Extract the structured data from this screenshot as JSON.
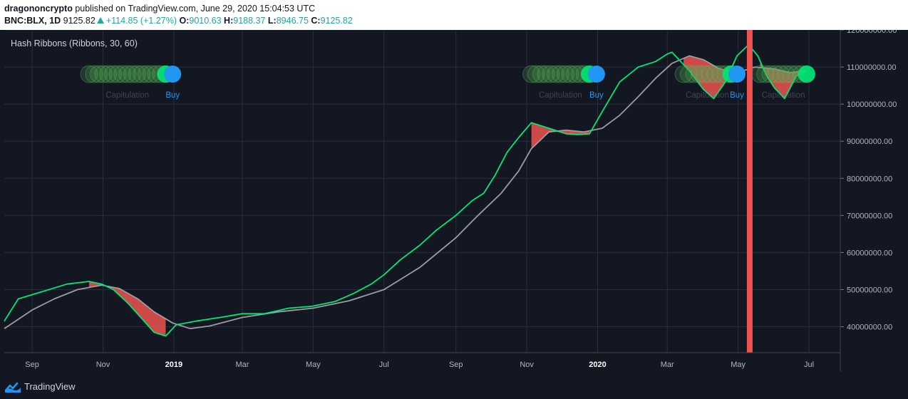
{
  "header": {
    "author": "dragononcrypto",
    "published_text": " published on TradingView.com, June 29, 2020 15:04:53 UTC",
    "symbol": "BNC:BLX, 1D",
    "last": "9125.82",
    "change": "+114.85 (+1.27%)",
    "o_label": "O:",
    "o_value": "9010.63",
    "h_label": "H:",
    "h_value": "9188.37",
    "l_label": "L:",
    "l_value": "8946.75",
    "c_label": "C:",
    "c_value": "9125.82"
  },
  "footer": {
    "brand": "TradingView"
  },
  "colors": {
    "background": "#131722",
    "grid": "#2a2e39",
    "fast_ma": "#00e676",
    "slow_ma": "#9e9aa4",
    "capitulation_fill": "#ef5350",
    "buy": "#2196f3",
    "vertical_marker": "#ef5350"
  },
  "chart_data": {
    "type": "line",
    "title": "Hash Ribbons (Ribbons, 30, 60)",
    "x_tick_labels": [
      "Sep",
      "Nov",
      "2019",
      "Mar",
      "May",
      "Jul",
      "Sep",
      "Nov",
      "2020",
      "Mar",
      "May",
      "Jul"
    ],
    "x_range": [
      "2018-08-08",
      "2020-07-28"
    ],
    "ylim": [
      33000000,
      120000000
    ],
    "y_tick_labels": [
      "120000000.00",
      "110000000.00",
      "100000000.00",
      "90000000.00",
      "80000000.00",
      "70000000.00",
      "60000000.00",
      "50000000.00",
      "40000000.00"
    ],
    "y_ticks": [
      120000000,
      110000000,
      100000000,
      90000000,
      80000000,
      70000000,
      60000000,
      50000000,
      40000000
    ],
    "grid": true,
    "series": [
      {
        "key": "fast",
        "x": [
          "2018-08-08",
          "2018-08-20",
          "2018-09-10",
          "2018-10-01",
          "2018-10-20",
          "2018-10-31",
          "2018-11-10",
          "2018-11-22",
          "2018-12-05",
          "2018-12-15",
          "2018-12-25",
          "2019-01-03",
          "2019-01-20",
          "2019-02-10",
          "2019-03-01",
          "2019-03-20",
          "2019-04-10",
          "2019-04-30",
          "2019-05-20",
          "2019-06-05",
          "2019-06-20",
          "2019-07-01",
          "2019-07-15",
          "2019-08-01",
          "2019-08-15",
          "2019-09-01",
          "2019-09-15",
          "2019-09-25",
          "2019-10-05",
          "2019-10-15",
          "2019-10-25",
          "2019-11-05",
          "2019-11-20",
          "2019-12-05",
          "2019-12-15",
          "2019-12-25",
          "2020-01-05",
          "2020-01-20",
          "2020-02-05",
          "2020-02-20",
          "2020-03-01",
          "2020-03-05",
          "2020-03-20",
          "2020-04-01",
          "2020-04-10",
          "2020-04-20",
          "2020-04-30",
          "2020-05-10",
          "2020-05-18",
          "2020-05-25",
          "2020-06-01",
          "2020-06-10",
          "2020-06-20",
          "2020-06-29"
        ],
        "values": [
          41500000,
          47500000,
          49500000,
          51500000,
          52200000,
          51500000,
          50000000,
          46500000,
          42000000,
          38500000,
          37500000,
          40500000,
          41500000,
          42500000,
          43500000,
          43500000,
          45000000,
          45500000,
          46800000,
          49000000,
          51500000,
          54000000,
          58000000,
          62000000,
          66000000,
          70000000,
          74000000,
          76000000,
          81000000,
          87000000,
          91000000,
          95000000,
          93500000,
          92000000,
          91800000,
          92000000,
          98000000,
          106000000,
          110000000,
          111500000,
          113500000,
          114000000,
          109000000,
          104000000,
          101500000,
          106000000,
          113000000,
          116000000,
          113000000,
          108000000,
          104500000,
          101500000,
          107500000,
          109000000
        ]
      },
      {
        "key": "slow",
        "x": [
          "2018-08-08",
          "2018-09-01",
          "2018-09-20",
          "2018-10-10",
          "2018-10-31",
          "2018-11-15",
          "2018-12-01",
          "2018-12-15",
          "2018-12-31",
          "2019-01-15",
          "2019-02-01",
          "2019-03-01",
          "2019-04-01",
          "2019-05-01",
          "2019-06-01",
          "2019-07-01",
          "2019-08-01",
          "2019-09-01",
          "2019-09-20",
          "2019-10-10",
          "2019-10-25",
          "2019-11-05",
          "2019-11-20",
          "2019-12-05",
          "2019-12-20",
          "2020-01-05",
          "2020-01-20",
          "2020-02-05",
          "2020-02-20",
          "2020-03-05",
          "2020-03-20",
          "2020-04-01",
          "2020-04-15",
          "2020-05-01",
          "2020-05-15",
          "2020-06-01",
          "2020-06-15",
          "2020-06-29"
        ],
        "values": [
          39500000,
          44500000,
          47500000,
          50000000,
          51200000,
          50300000,
          47500000,
          44000000,
          41000000,
          39500000,
          40200000,
          42500000,
          44000000,
          45000000,
          47000000,
          50000000,
          56000000,
          64000000,
          70000000,
          76000000,
          82000000,
          88000000,
          92500000,
          93000000,
          92500000,
          93500000,
          97000000,
          102000000,
          107000000,
          111000000,
          113000000,
          112000000,
          109500000,
          108500000,
          110000000,
          109500000,
          108500000,
          109000000
        ]
      }
    ],
    "signals": [
      {
        "label": "Capitulation",
        "start": "2018-10-20",
        "end": "2018-12-25"
      },
      {
        "label": "Buy",
        "date": "2018-12-31"
      },
      {
        "label": "Capitulation",
        "start": "2019-11-05",
        "end": "2019-12-25"
      },
      {
        "label": "Buy",
        "date": "2019-12-31"
      },
      {
        "label": "Capitulation",
        "start": "2020-03-15",
        "end": "2020-04-25"
      },
      {
        "label": "Buy",
        "date": "2020-04-30"
      },
      {
        "label": "Capitulation",
        "start": "2020-05-20",
        "end": "2020-06-29"
      }
    ],
    "vertical_marker_date": "2020-05-11"
  }
}
